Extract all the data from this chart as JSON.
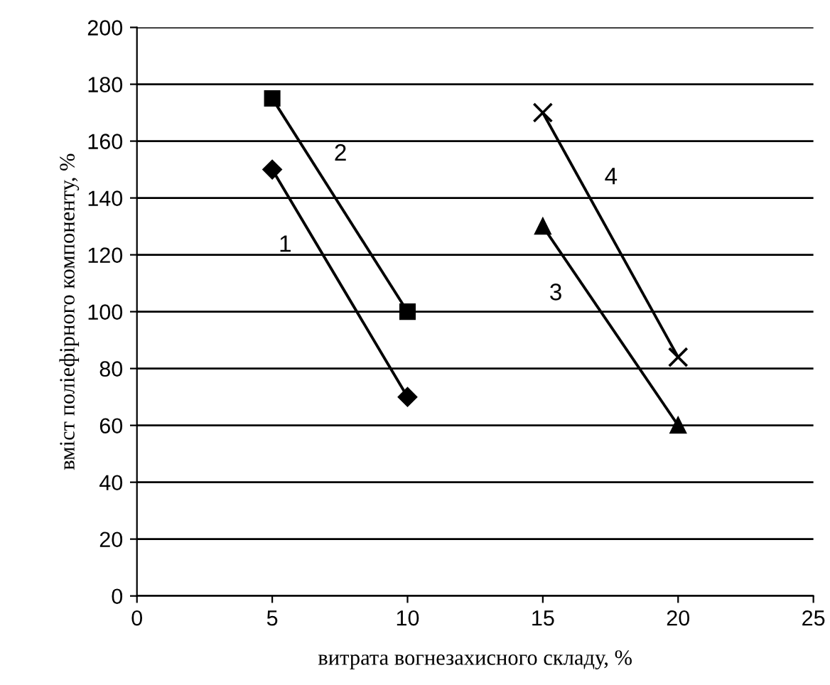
{
  "chart_data": {
    "type": "line",
    "xlabel": "витрата вогнезахисного складу, %",
    "ylabel": "вміст поліефірного компоненту, %",
    "xlim": [
      0,
      25
    ],
    "xticks": [
      0,
      5,
      10,
      15,
      20,
      25
    ],
    "ylim": [
      0,
      200
    ],
    "yticks": [
      0,
      20,
      40,
      60,
      80,
      100,
      120,
      140,
      160,
      180,
      200
    ],
    "grid": "y",
    "legend": false,
    "series": [
      {
        "name": "1",
        "color": "#000000",
        "marker": "diamond",
        "x": [
          5,
          10
        ],
        "values": [
          150,
          70
        ]
      },
      {
        "name": "2",
        "color": "#000000",
        "marker": "square",
        "x": [
          5,
          10
        ],
        "values": [
          175,
          100
        ]
      },
      {
        "name": "3",
        "color": "#000000",
        "marker": "triangle",
        "x": [
          15,
          20
        ],
        "values": [
          130,
          60
        ]
      },
      {
        "name": "4",
        "color": "#000000",
        "marker": "cross",
        "x": [
          15,
          20
        ],
        "values": [
          170,
          84
        ]
      }
    ]
  }
}
